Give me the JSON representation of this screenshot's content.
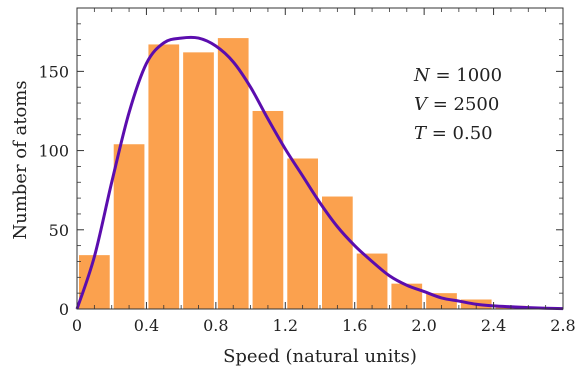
{
  "chart_data": {
    "type": "bar",
    "xlabel": "Speed (natural units)",
    "ylabel": "Number of atoms",
    "xlim": [
      0,
      2.8
    ],
    "ylim": [
      0,
      190
    ],
    "grid": false,
    "x_ticks": [
      {
        "value": 0,
        "label": "0"
      },
      {
        "value": 0.4,
        "label": "0.4"
      },
      {
        "value": 0.8,
        "label": "0.8"
      },
      {
        "value": 1.2,
        "label": "1.2"
      },
      {
        "value": 1.6,
        "label": "1.6"
      },
      {
        "value": 2.0,
        "label": "2.0"
      },
      {
        "value": 2.4,
        "label": "2.4"
      },
      {
        "value": 2.8,
        "label": "2.8"
      }
    ],
    "y_ticks": [
      {
        "value": 0,
        "label": "0"
      },
      {
        "value": 50,
        "label": "50"
      },
      {
        "value": 100,
        "label": "100"
      },
      {
        "value": 150,
        "label": "150"
      }
    ],
    "bin_width": 0.2,
    "bins": [
      {
        "x_start": 0.0,
        "value": 34
      },
      {
        "x_start": 0.2,
        "value": 104
      },
      {
        "x_start": 0.4,
        "value": 167
      },
      {
        "x_start": 0.6,
        "value": 162
      },
      {
        "x_start": 0.8,
        "value": 171
      },
      {
        "x_start": 1.0,
        "value": 125
      },
      {
        "x_start": 1.2,
        "value": 95
      },
      {
        "x_start": 1.4,
        "value": 71
      },
      {
        "x_start": 1.6,
        "value": 35
      },
      {
        "x_start": 1.8,
        "value": 16
      },
      {
        "x_start": 2.0,
        "value": 10
      },
      {
        "x_start": 2.2,
        "value": 6
      },
      {
        "x_start": 2.4,
        "value": 2
      }
    ],
    "curve": {
      "x": [
        0,
        0.1,
        0.2,
        0.3,
        0.4,
        0.5,
        0.6,
        0.7,
        0.8,
        0.9,
        1.0,
        1.1,
        1.2,
        1.3,
        1.4,
        1.5,
        1.6,
        1.7,
        1.8,
        1.9,
        2.0,
        2.1,
        2.2,
        2.3,
        2.4,
        2.5,
        2.6,
        2.7,
        2.8
      ],
      "y": [
        0,
        33,
        80,
        124,
        155,
        168,
        171,
        171,
        166,
        156,
        140,
        120,
        101,
        84,
        67,
        52,
        40,
        30,
        21,
        15,
        11,
        7,
        5,
        3,
        2,
        1.4,
        0.9,
        0.5,
        0.2
      ]
    },
    "annotations": [
      {
        "var": "N",
        "text": " = 1000"
      },
      {
        "var": "V",
        "text": " = 2500"
      },
      {
        "var": "T",
        "text": " = 0.50"
      }
    ],
    "colors": {
      "bars": "#FBA14E",
      "curve": "#5B0DAE",
      "frame": "#333333"
    }
  }
}
